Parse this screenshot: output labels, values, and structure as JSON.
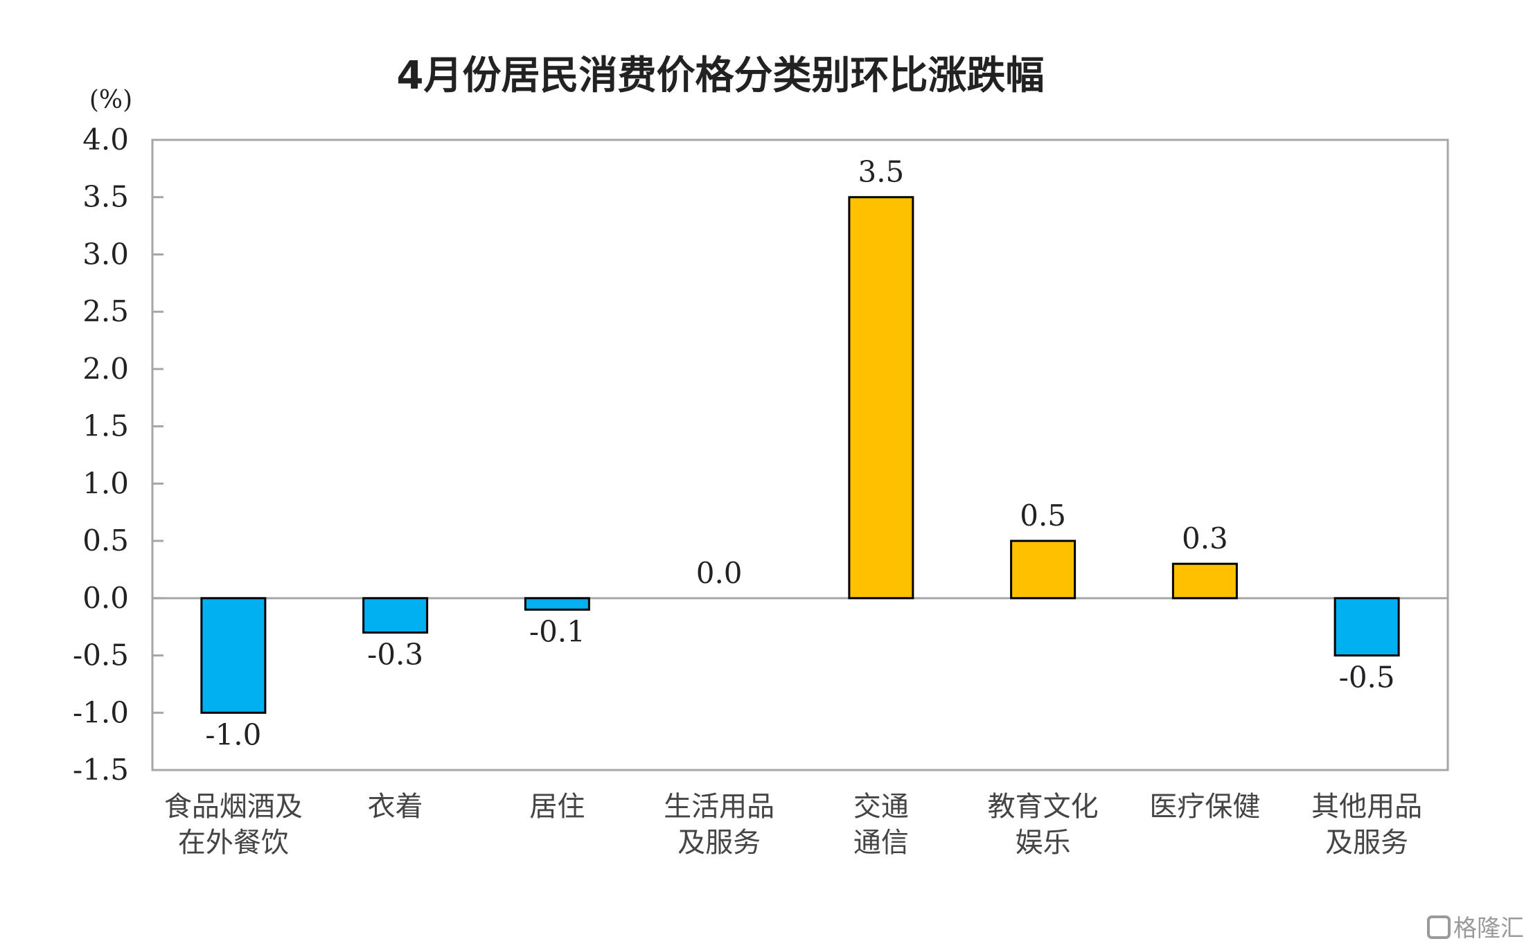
{
  "chart_data": {
    "type": "bar",
    "title": "4月份居民消费价格分类别环比涨跌幅",
    "unit_label": "(%)",
    "categories": [
      [
        "食品烟酒及",
        "在外餐饮"
      ],
      [
        "衣着"
      ],
      [
        "居住"
      ],
      [
        "生活用品",
        "及服务"
      ],
      [
        "交通",
        "通信"
      ],
      [
        "教育文化",
        "娱乐"
      ],
      [
        "医疗保健"
      ],
      [
        "其他用品",
        "及服务"
      ]
    ],
    "values": [
      -1.0,
      -0.3,
      -0.1,
      0.0,
      3.5,
      0.5,
      0.3,
      -0.5
    ],
    "value_labels": [
      "-1.0",
      "-0.3",
      "-0.1",
      "0.0",
      "3.5",
      "0.5",
      "0.3",
      "-0.5"
    ],
    "ylim": [
      -1.5,
      4.0
    ],
    "yticks": [
      "4.0",
      "3.5",
      "3.0",
      "2.5",
      "2.0",
      "1.5",
      "1.0",
      "0.5",
      "0.0",
      "-0.5",
      "-1.0",
      "-1.5"
    ],
    "ytick_values": [
      4.0,
      3.5,
      3.0,
      2.5,
      2.0,
      1.5,
      1.0,
      0.5,
      0.0,
      -0.5,
      -1.0,
      -1.5
    ],
    "grid": false,
    "colors": {
      "positive": "#FFC000",
      "negative": "#00B0F0",
      "bar_stroke": "#000000",
      "frame": "#a6a6a6",
      "zero_line": "#a6a6a6"
    }
  },
  "watermark": "格隆汇"
}
